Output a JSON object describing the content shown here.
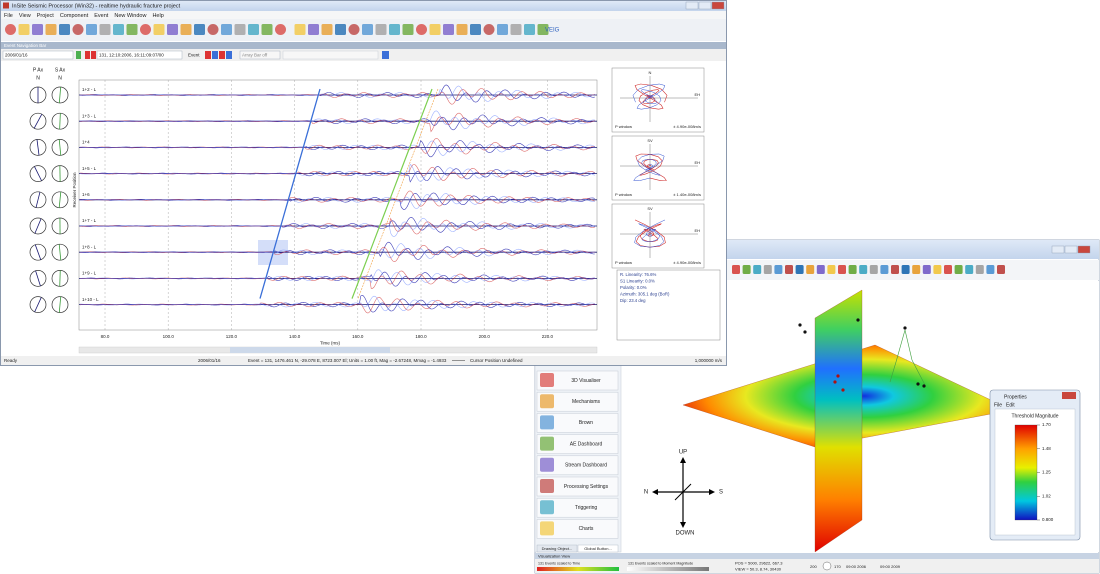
{
  "seismic_window": {
    "title": "InSite Seismic Processor (Win32) - realtime hydraulic fracture project",
    "menu": [
      "File",
      "View",
      "Project",
      "Component",
      "Event",
      "New Window",
      "Help"
    ],
    "toolbar_text": "VEIG",
    "panel_title": "Event Navigation Bar",
    "date": "2006/01/16",
    "event_selector": "131, 12:10:2006, 16:11:09:07/00",
    "event_label": "Event",
    "array_bar": "Array Bar off",
    "axis_columns": [
      "P Ax",
      "S Ax"
    ],
    "north_labels": [
      "N",
      "N"
    ],
    "y_axis_label": "Receiver Position",
    "x_axis_label": "Time (ms)",
    "time_ticks": [
      "80.0",
      "100.0",
      "120.0",
      "140.0",
      "160.0",
      "180.0",
      "200.0",
      "220.0"
    ],
    "traces": [
      "1+2 - L",
      "1+3 - L",
      "1+4",
      "1+5 - L",
      "1+6",
      "1+7 - L",
      "1+8 - L",
      "1+9 - L",
      "1+10 - L"
    ],
    "hodograms": [
      {
        "vertical": "N",
        "horizontal": "EH",
        "window": "P window",
        "scale": "± 4.90e-008m/s"
      },
      {
        "vertical": "SV",
        "horizontal": "EH",
        "window": "P window",
        "scale": "± 1.40e-008m/s"
      },
      {
        "vertical": "SV",
        "horizontal": "EH",
        "window": "P window",
        "scale": "± 4.90e-008m/s"
      }
    ],
    "analysis": [
      "R. Linearity: 76.6%",
      "S1 Linearity: 0.0%",
      "Polarity: 0.0%",
      "Azimuth: 305.1 deg (BoR)",
      "Dip: 23.4 deg"
    ],
    "status": {
      "ready": "Ready",
      "date": "2006/01/16",
      "event": "Event = 131, 1476.461 N, -29.078 E, 8723.007 El; Units = 1.00 ft, Mag = -2.67248, Mmag = -1.4933",
      "cursor": "Cursor Position Undefined",
      "velocity": "1,000000 m/s"
    }
  },
  "visualizer_window": {
    "buttons": [
      "3D Visualiser",
      "Mechanisms",
      "Brown",
      "AE Dashboard",
      "Stream Dashboard",
      "Processing Settings",
      "Triggering",
      "Charts"
    ],
    "tabs": [
      "Drawing Object...",
      "Global Button..."
    ],
    "compass": {
      "up": "UP",
      "down": "DOWN",
      "north": "N",
      "south": "S"
    },
    "properties": {
      "title": "Properties",
      "menu": [
        "File",
        "Edit"
      ],
      "heading": "Threshold Magnitude",
      "scale": [
        "1.70",
        "1.48",
        "1.25",
        "1.02",
        "0.800"
      ]
    },
    "bottom_title": "Visualization View",
    "legend": [
      "131 Events scaled to Time",
      "131 Events scaled to Moment Magnitude"
    ],
    "pos": "POS = 5000, 29622, 667.3",
    "view": "VIEW = 50.3, 8.74, 30430",
    "time_controls": [
      "200",
      "170",
      "09:00 2006",
      "09:00 2009"
    ]
  }
}
